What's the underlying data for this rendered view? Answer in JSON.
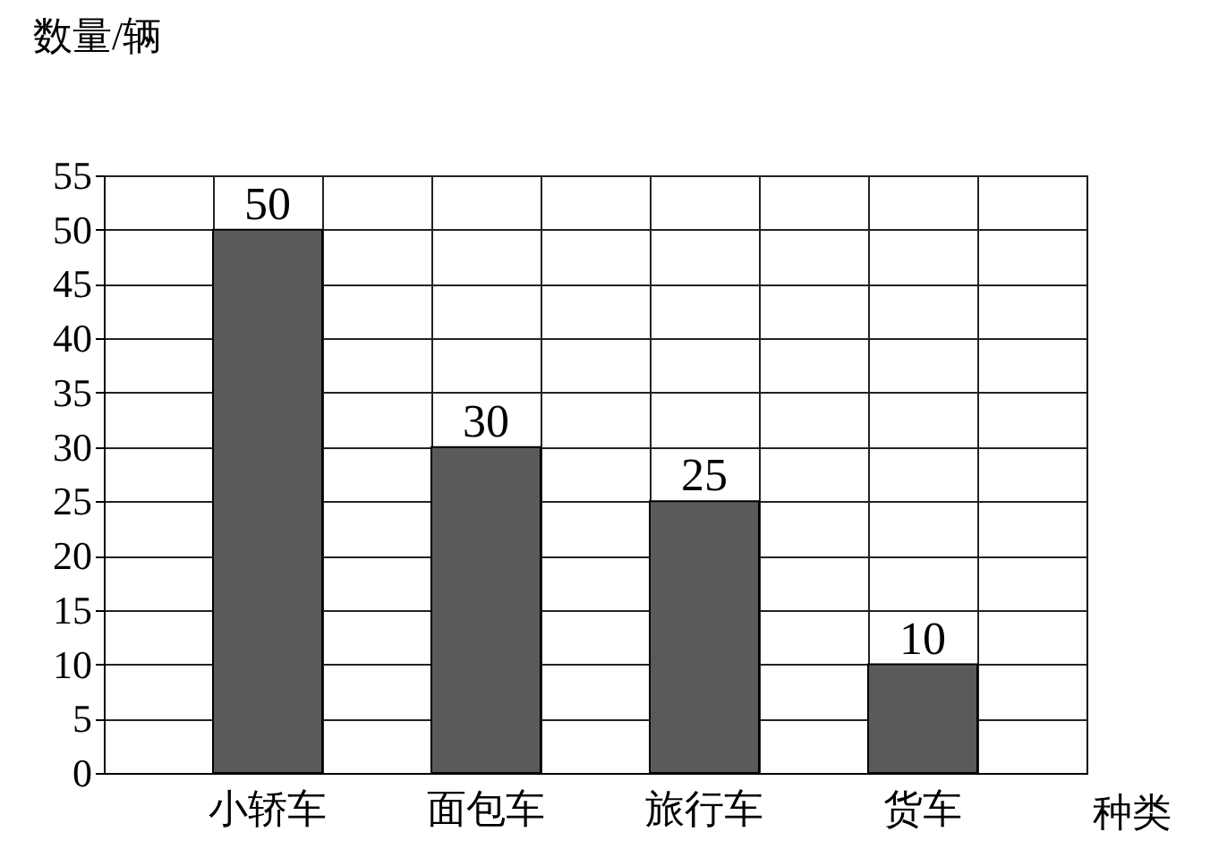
{
  "chart_data": {
    "type": "bar",
    "xlabel": "种类",
    "ylabel": "数量/辆",
    "categories": [
      "小轿车",
      "面包车",
      "旅行车",
      "货车"
    ],
    "values": [
      50,
      30,
      25,
      10
    ],
    "color": "#5a5a5a",
    "ylim": [
      0,
      55
    ],
    "yticks": [
      0,
      5,
      10,
      15,
      20,
      25,
      30,
      35,
      40,
      45,
      50,
      55
    ],
    "grid": true,
    "data_labels": true
  }
}
